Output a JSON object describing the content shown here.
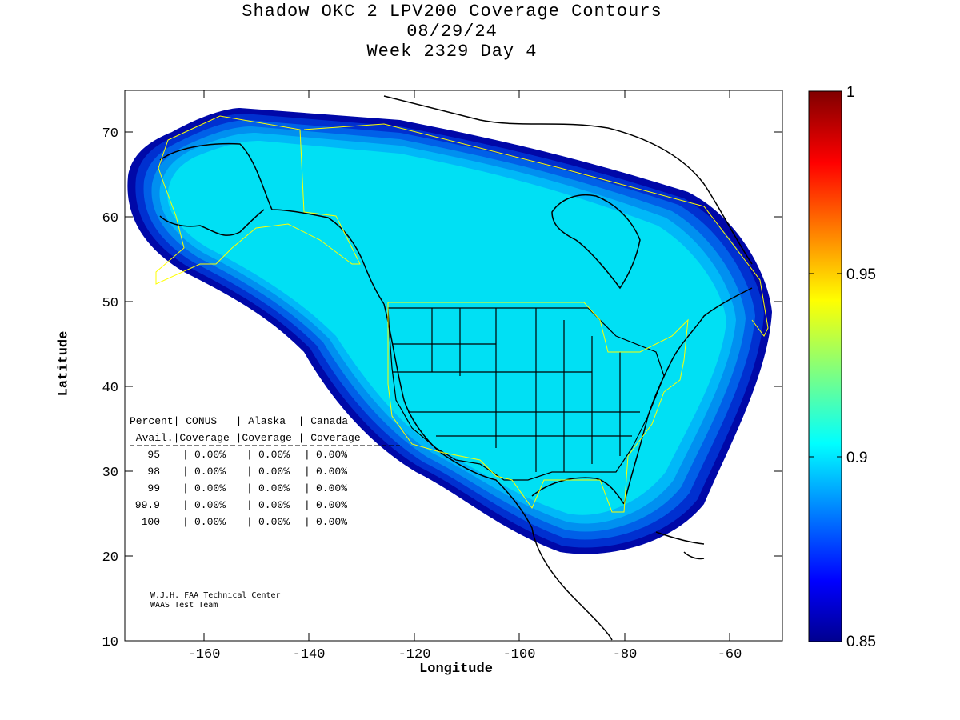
{
  "title": {
    "line1": "Shadow OKC 2 LPV200 Coverage Contours",
    "line2": "08/29/24",
    "line3": "Week 2329 Day 4"
  },
  "axes": {
    "xlabel": "Longitude",
    "ylabel": "Latitude",
    "x_ticks": [
      "-160",
      "-140",
      "-120",
      "-100",
      "-80",
      "-60"
    ],
    "y_ticks": [
      "10",
      "20",
      "30",
      "40",
      "50",
      "60",
      "70"
    ],
    "xlim": [
      -175,
      -50
    ],
    "ylim": [
      10,
      75
    ]
  },
  "colorbar": {
    "labels": [
      "1",
      "0.95",
      "0.9",
      "0.85"
    ],
    "range": [
      0.85,
      1.0
    ]
  },
  "colors": {
    "coverage_main": "#00e0f4",
    "contour_band1": "#00b8f8",
    "contour_band2": "#0090f0",
    "contour_band3": "#0060e8",
    "contour_band4": "#0030d0",
    "contour_edge": "#0008a8",
    "service_volume_line": "#ffff00"
  },
  "table": {
    "header1": "Percent| CONUS   | Alaska  | Canada",
    "header2": " Avail.|Coverage |Coverage | Coverage",
    "rows": [
      {
        "pct": "95",
        "conus": "0.00%",
        "alaska": "0.00%",
        "canada": "0.00%"
      },
      {
        "pct": "98",
        "conus": "0.00%",
        "alaska": "0.00%",
        "canada": "0.00%"
      },
      {
        "pct": "99",
        "conus": "0.00%",
        "alaska": "0.00%",
        "canada": "0.00%"
      },
      {
        "pct": "99.9",
        "conus": "0.00%",
        "alaska": "0.00%",
        "canada": "0.00%"
      },
      {
        "pct": "100",
        "conus": "0.00%",
        "alaska": "0.00%",
        "canada": "0.00%"
      }
    ]
  },
  "credit": {
    "line1": "W.J.H. FAA Technical Center",
    "line2": "WAAS Test Team"
  }
}
